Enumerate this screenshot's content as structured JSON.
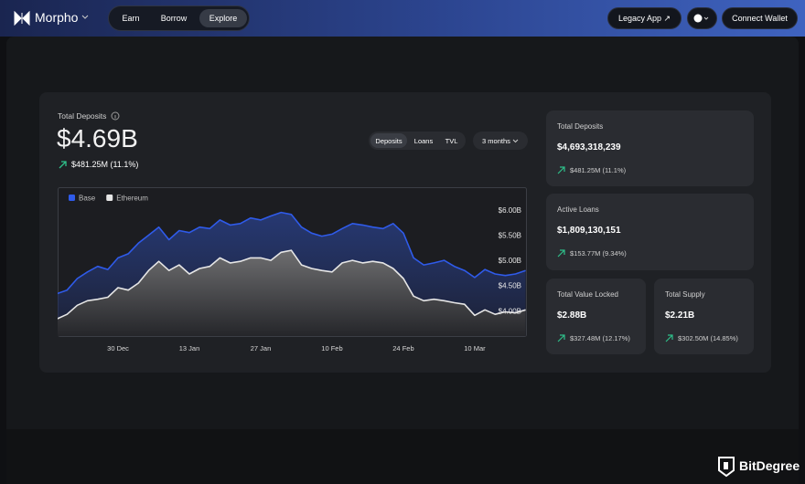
{
  "nav": {
    "brand": "Morpho",
    "tabs": [
      "Earn",
      "Borrow",
      "Explore"
    ],
    "legacy": "Legacy App",
    "connect": "Connect Wallet"
  },
  "overview": {
    "label": "Total Deposits",
    "value": "$4.69B",
    "change": "$481.25M (11.1%)",
    "toggles": [
      "Deposits",
      "Loans",
      "TVL"
    ],
    "range": "3 months"
  },
  "chart_data": {
    "type": "line",
    "categories": [
      null,
      null,
      null,
      null,
      null,
      null,
      "30 Dec",
      null,
      null,
      null,
      null,
      null,
      null,
      "13 Jan",
      null,
      null,
      null,
      null,
      null,
      null,
      "27 Jan",
      null,
      null,
      null,
      null,
      null,
      null,
      "10 Feb",
      null,
      null,
      null,
      null,
      null,
      null,
      "24 Feb",
      null,
      null,
      null,
      null,
      null,
      null,
      "10 Mar",
      null,
      null,
      null,
      null,
      null
    ],
    "series": [
      {
        "name": "Base",
        "color": "#2f5bea",
        "values": [
          4.34,
          4.41,
          4.64,
          4.77,
          4.88,
          4.82,
          5.05,
          5.13,
          5.34,
          5.5,
          5.66,
          5.41,
          5.59,
          5.55,
          5.66,
          5.63,
          5.8,
          5.7,
          5.73,
          5.84,
          5.8,
          5.88,
          5.95,
          5.91,
          5.66,
          5.54,
          5.48,
          5.52,
          5.63,
          5.73,
          5.7,
          5.66,
          5.63,
          5.73,
          5.54,
          5.05,
          4.91,
          4.95,
          5.0,
          4.88,
          4.8,
          4.66,
          4.82,
          4.73,
          4.7,
          4.73,
          4.8
        ]
      },
      {
        "name": "Ethereum",
        "color": "#e6e6e6",
        "values": [
          3.84,
          3.93,
          4.11,
          4.2,
          4.23,
          4.27,
          4.46,
          4.41,
          4.55,
          4.8,
          4.98,
          4.8,
          4.91,
          4.73,
          4.84,
          4.88,
          5.05,
          4.95,
          4.98,
          5.05,
          5.05,
          5.0,
          5.16,
          5.2,
          4.91,
          4.84,
          4.8,
          4.77,
          4.95,
          5.0,
          4.95,
          4.98,
          4.95,
          4.84,
          4.64,
          4.29,
          4.2,
          4.23,
          4.2,
          4.16,
          4.13,
          3.91,
          4.02,
          3.93,
          3.98,
          3.96,
          4.02
        ]
      }
    ],
    "ylim": [
      3.5,
      6.45
    ],
    "yticks": [
      {
        "value": 4,
        "label": "$4.00B"
      },
      {
        "value": 4.5,
        "label": "$4.50B"
      },
      {
        "value": 5,
        "label": "$5.00B"
      },
      {
        "value": 5.5,
        "label": "$5.50B"
      },
      {
        "value": 6,
        "label": "$6.00B"
      }
    ],
    "grid": false,
    "legend": "top-left"
  },
  "stats": [
    {
      "label": "Total Deposits",
      "value": "$4,693,318,239",
      "change": "$481.25M (11.1%)"
    },
    {
      "label": "Active Loans",
      "value": "$1,809,130,151",
      "change": "$153.77M (9.34%)"
    },
    {
      "label": "Total Value Locked",
      "value": "$2.88B",
      "change": "$327.48M (12.17%)"
    },
    {
      "label": "Total Supply",
      "value": "$2.21B",
      "change": "$302.50M (14.85%)"
    }
  ],
  "watermark": "BitDegree"
}
